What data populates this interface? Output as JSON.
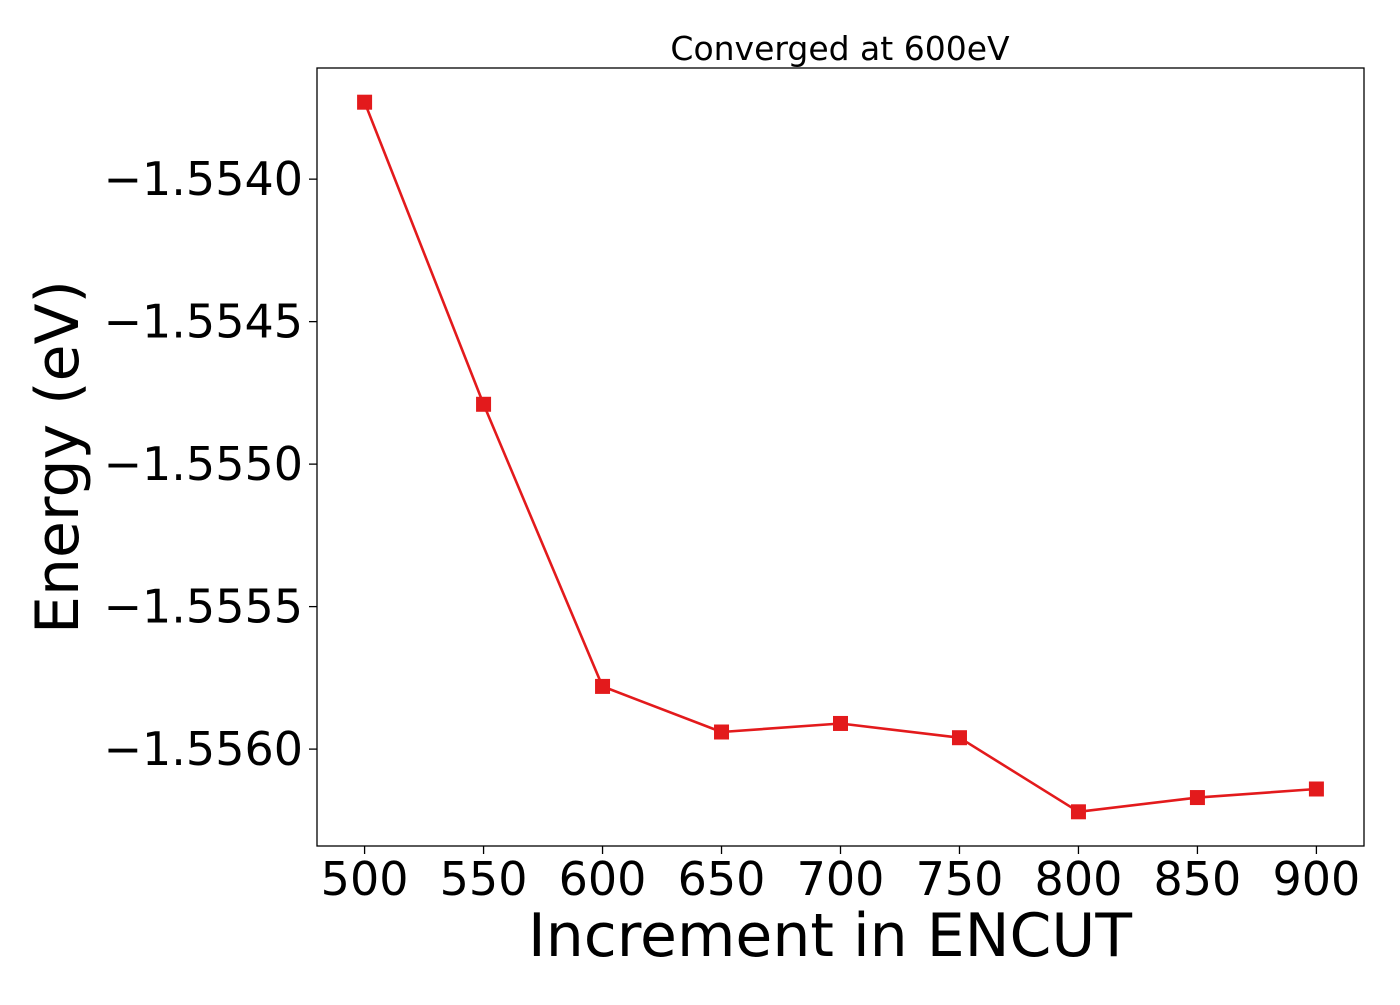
{
  "chart_data": {
    "type": "line",
    "title": "Converged at 600eV",
    "xlabel": "Increment in ENCUT",
    "ylabel": "Energy (eV)",
    "x": [
      500,
      550,
      600,
      650,
      700,
      750,
      800,
      850,
      900
    ],
    "x_ticks": [
      500,
      550,
      600,
      650,
      700,
      750,
      800,
      850,
      900
    ],
    "x_tick_labels": [
      "500",
      "550",
      "600",
      "650",
      "700",
      "750",
      "800",
      "850",
      "900"
    ],
    "xlim": [
      480,
      920
    ],
    "y_ticks": [
      -1.554,
      -1.5545,
      -1.555,
      -1.5555,
      -1.556
    ],
    "y_tick_labels": [
      "−1.5540",
      "−1.5545",
      "−1.5550",
      "−1.5555",
      "−1.5560"
    ],
    "ylim": [
      -1.55634,
      -1.55361
    ],
    "grid": false,
    "series": [
      {
        "name": "",
        "color": "#e31a1c",
        "marker": "square",
        "values": [
          -1.55373,
          -1.55479,
          -1.55578,
          -1.55594,
          -1.55591,
          -1.55596,
          -1.55622,
          -1.55617,
          -1.55614
        ]
      }
    ]
  }
}
